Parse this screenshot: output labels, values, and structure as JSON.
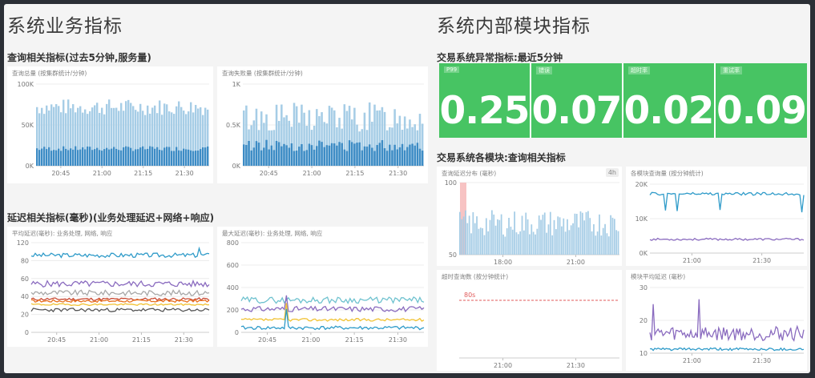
{
  "sections": {
    "left_title": "系统业务指标",
    "right_title": "系统内部模块指标"
  },
  "groups": {
    "business": "查询相关指标(过去5分钟,服务量)",
    "latency": "延迟相关指标(毫秒)(业务处理延迟+网络+响应)",
    "stat_header": "交易系统异常指标:最近5分钟",
    "modules": "交易系统各模块:查询相关指标"
  },
  "stats": [
    {
      "label": "P99",
      "value": "0.25"
    },
    {
      "label": "错误",
      "value": "0.07"
    },
    {
      "label": "超时率",
      "value": "0.02"
    },
    {
      "label": "重试率",
      "value": "0.09"
    }
  ],
  "colors": {
    "stat_green": "#47c463",
    "bar_light": "#a6cde6",
    "bar_dark": "#3d8cc5",
    "line_blue": "#2f9bc9",
    "line_purple": "#8a6bbf",
    "line_gray": "#a8a8a8",
    "line_orange": "#e8701e",
    "line_red": "#c94a35",
    "line_yellow": "#f1c232",
    "line_dark": "#555555",
    "line_teal": "#6fc2cf",
    "threshold_red": "#e05a5a"
  },
  "panels": {
    "p1": {
      "title": "查询总量 (按集群统计/分钟)",
      "xticks": [
        "20:45",
        "21:00",
        "21:15",
        "21:30"
      ],
      "yticks": [
        "0K",
        "50K",
        "100K"
      ]
    },
    "p2": {
      "title": "查询失败量 (按集群统计/分钟)",
      "xticks": [
        "20:45",
        "21:00",
        "21:15",
        "21:30"
      ],
      "yticks": [
        "0K",
        "0.5K",
        "1K"
      ]
    },
    "p3": {
      "title": "平均延迟(毫秒): 业务处理, 网络, 响应",
      "xticks": [
        "20:45",
        "21:00",
        "21:15",
        "21:30"
      ],
      "yticks": [
        "0",
        "20",
        "40",
        "60",
        "80",
        "120"
      ]
    },
    "p4": {
      "title": "最大延迟(毫秒): 业务处理, 网络, 响应",
      "xticks": [
        "20:45",
        "21:00",
        "21:15",
        "21:30"
      ],
      "yticks": [
        "0",
        "200",
        "400",
        "600",
        "800"
      ]
    },
    "p5": {
      "title": "查询延迟分布 (毫秒)",
      "badge": "4h",
      "xticks": [
        "18:00",
        "21:00"
      ],
      "yticks": [
        "50",
        "100"
      ]
    },
    "p6": {
      "title": "各模块查询量 (按分钟统计)",
      "xticks": [
        "21:00",
        "21:30"
      ],
      "yticks": [
        "0K",
        "10K",
        "20K"
      ]
    },
    "p7": {
      "title": "超时查询数 (按分钟统计)",
      "threshold_label": "80s",
      "xticks": [
        "21:00",
        "21:30"
      ],
      "yticks": []
    },
    "p8": {
      "title": "模块平均延迟 (毫秒)",
      "xticks": [
        "21:00",
        "21:30"
      ],
      "yticks": [
        "10",
        "20",
        "30"
      ]
    }
  }
}
